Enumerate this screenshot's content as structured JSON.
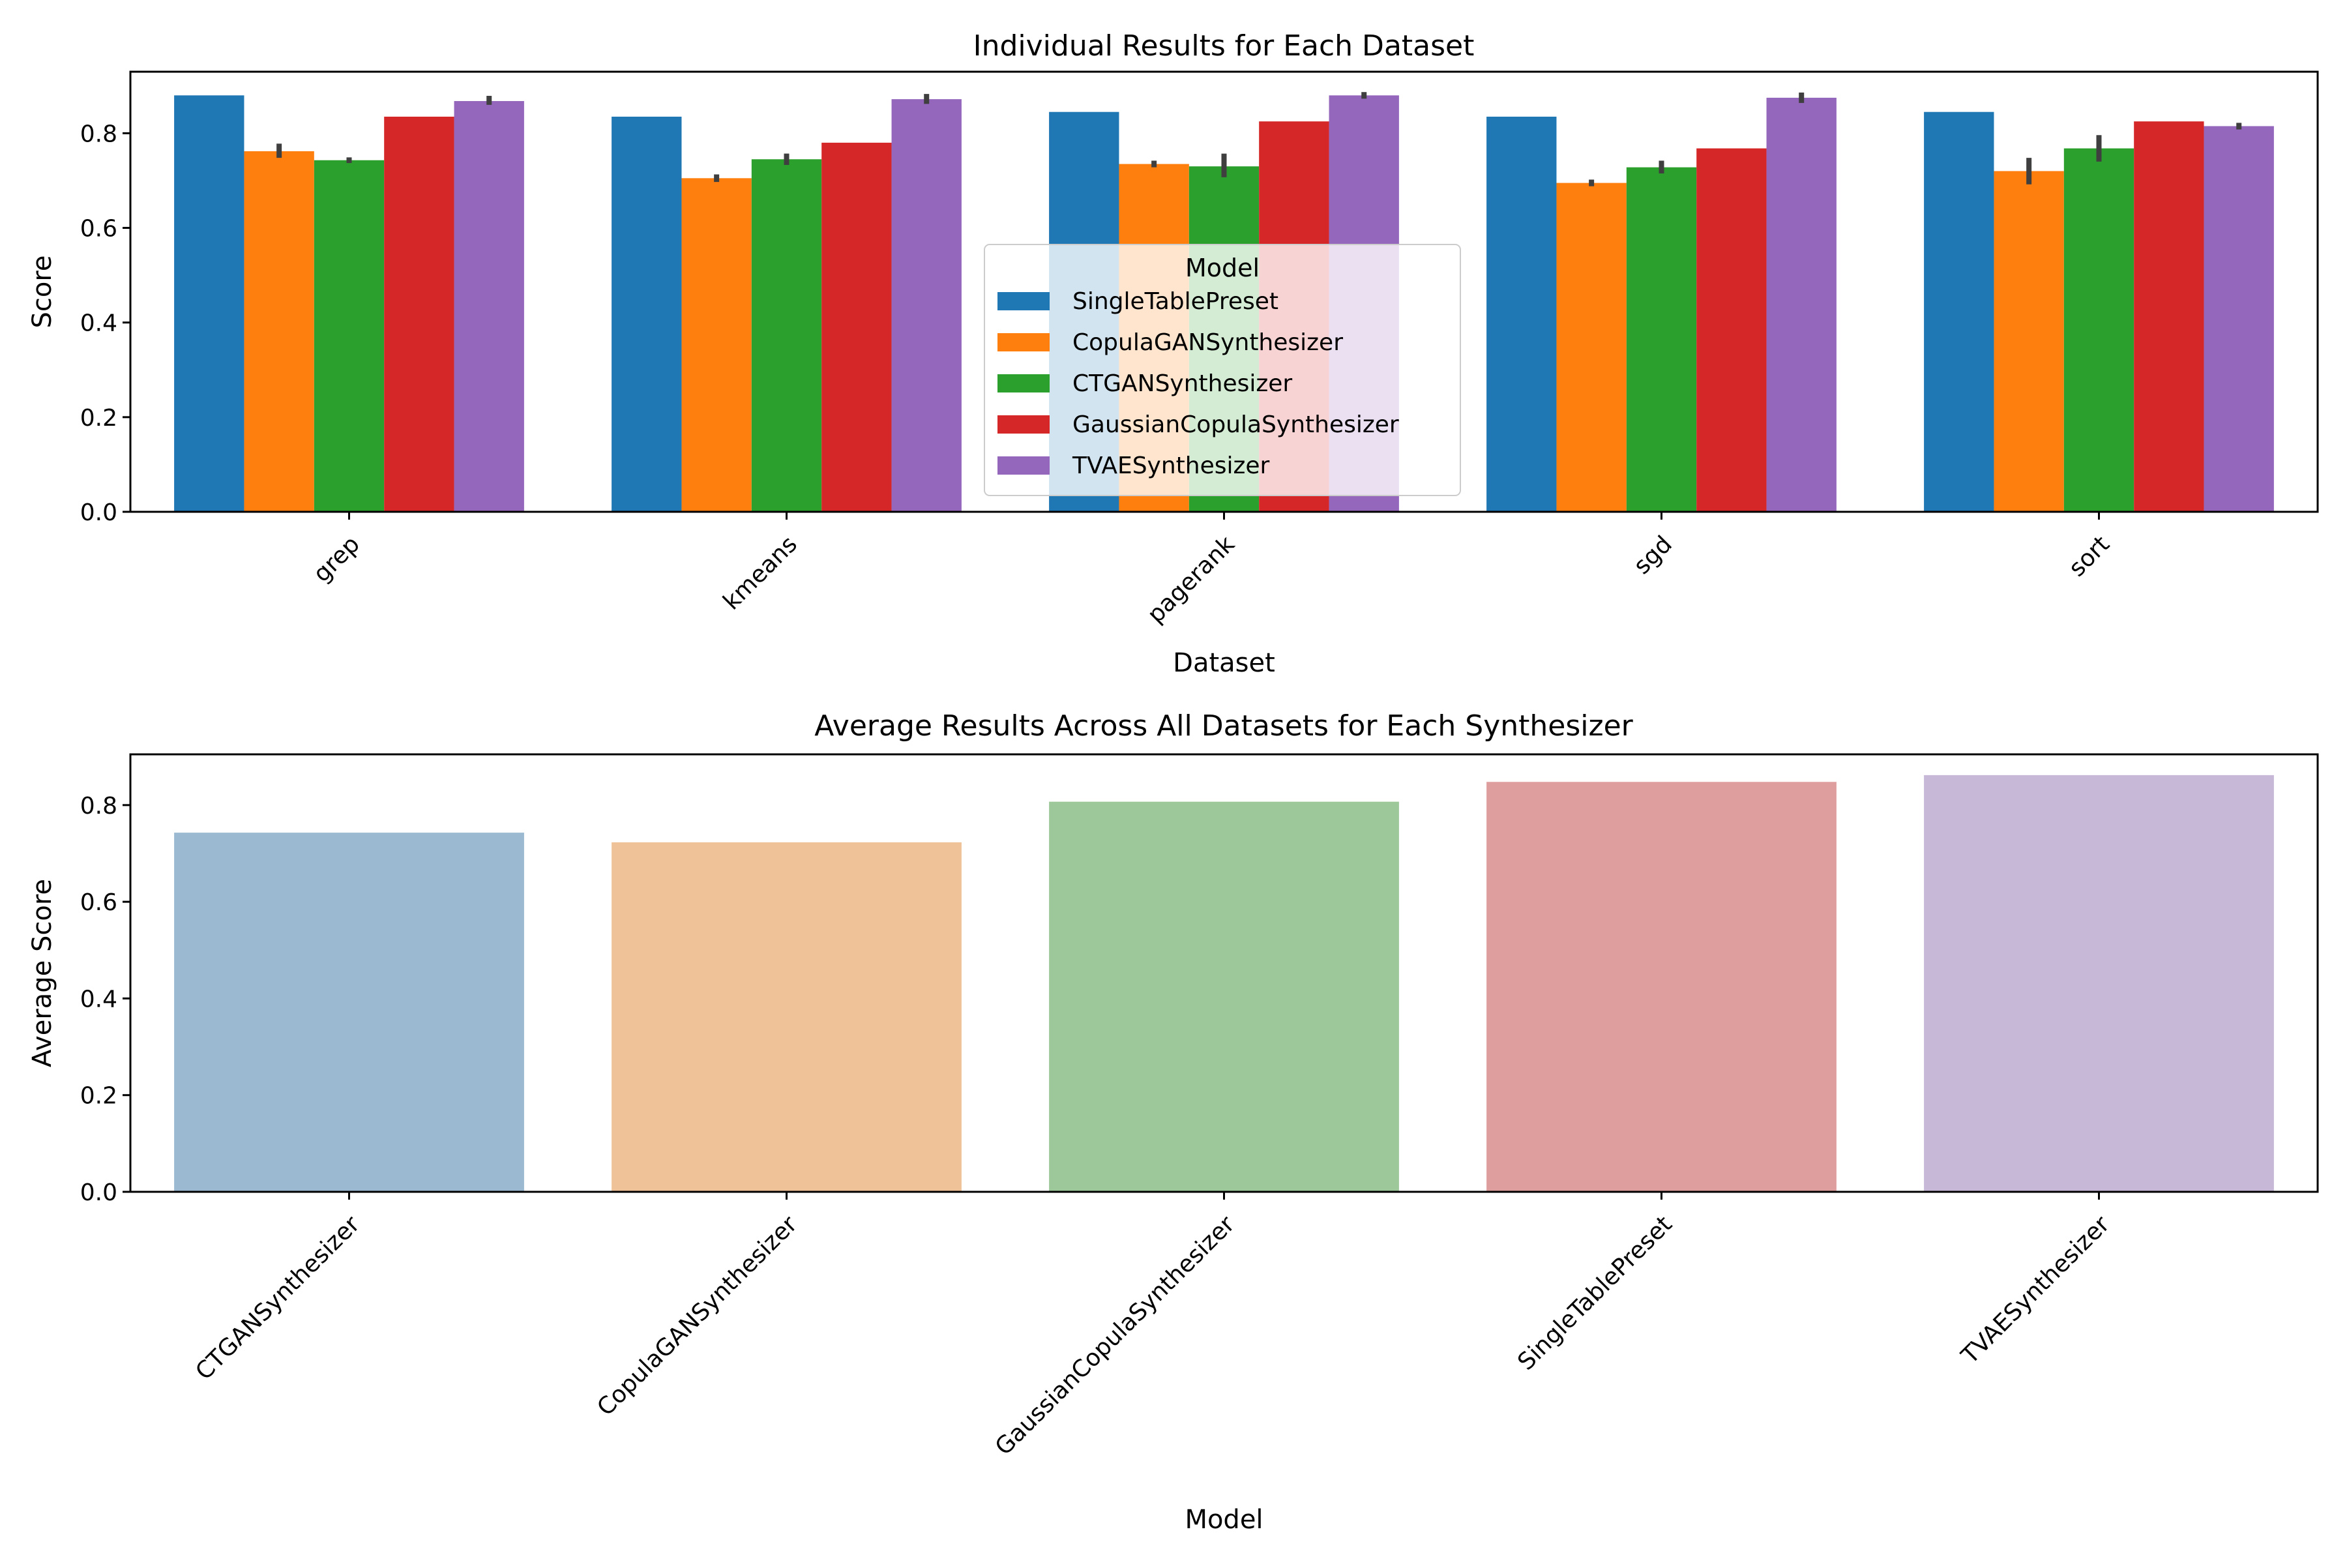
{
  "chart_data": [
    {
      "type": "bar",
      "title": "Individual Results for Each Dataset",
      "xlabel": "Dataset",
      "ylabel": "Score",
      "ylim": [
        0,
        0.93
      ],
      "yticks": [
        "0.0",
        "0.2",
        "0.4",
        "0.6",
        "0.8"
      ],
      "grid": false,
      "categories": [
        "grep",
        "kmeans",
        "pagerank",
        "sgd",
        "sort"
      ],
      "legend": {
        "title": "Model",
        "placement": "center"
      },
      "series": [
        {
          "name": "SingleTablePreset",
          "color": "#1f77b4",
          "values": [
            0.88,
            0.835,
            0.845,
            0.835,
            0.845
          ],
          "error": [
            null,
            null,
            null,
            null,
            null
          ]
        },
        {
          "name": "CopulaGANSynthesizer",
          "color": "#ff7f0e",
          "values": [
            0.762,
            0.705,
            0.735,
            0.695,
            0.72
          ],
          "error": [
            [
              0.748,
              0.778
            ],
            [
              0.697,
              0.713
            ],
            [
              0.728,
              0.742
            ],
            [
              0.688,
              0.702
            ],
            [
              0.692,
              0.748
            ]
          ]
        },
        {
          "name": "CTGANSynthesizer",
          "color": "#2ca02c",
          "values": [
            0.743,
            0.745,
            0.73,
            0.728,
            0.768
          ],
          "error": [
            [
              0.737,
              0.749
            ],
            [
              0.733,
              0.757
            ],
            [
              0.707,
              0.757
            ],
            [
              0.715,
              0.742
            ],
            [
              0.74,
              0.796
            ]
          ]
        },
        {
          "name": "GaussianCopulaSynthesizer",
          "color": "#d62728",
          "values": [
            0.835,
            0.78,
            0.825,
            0.768,
            0.825
          ],
          "error": [
            null,
            null,
            null,
            null,
            null
          ]
        },
        {
          "name": "TVAESynthesizer",
          "color": "#9467bd",
          "values": [
            0.868,
            0.872,
            0.88,
            0.875,
            0.815
          ],
          "error": [
            [
              0.86,
              0.879
            ],
            [
              0.862,
              0.883
            ],
            [
              0.873,
              0.887
            ],
            [
              0.864,
              0.886
            ],
            [
              0.808,
              0.822
            ]
          ]
        }
      ]
    },
    {
      "type": "bar",
      "title": "Average Results Across All Datasets for Each Synthesizer",
      "xlabel": "Model",
      "ylabel": "Average Score",
      "ylim": [
        0,
        0.905
      ],
      "yticks": [
        "0.0",
        "0.2",
        "0.4",
        "0.6",
        "0.8"
      ],
      "grid": false,
      "categories": [
        "CTGANSynthesizer",
        "CopulaGANSynthesizer",
        "GaussianCopulaSynthesizer",
        "SingleTablePreset",
        "TVAESynthesizer"
      ],
      "values": [
        0.743,
        0.723,
        0.807,
        0.848,
        0.862
      ],
      "colors": [
        "#9bbad2",
        "#efc297",
        "#9dc899",
        "#df9e9e",
        "#c7b8d8"
      ]
    }
  ]
}
